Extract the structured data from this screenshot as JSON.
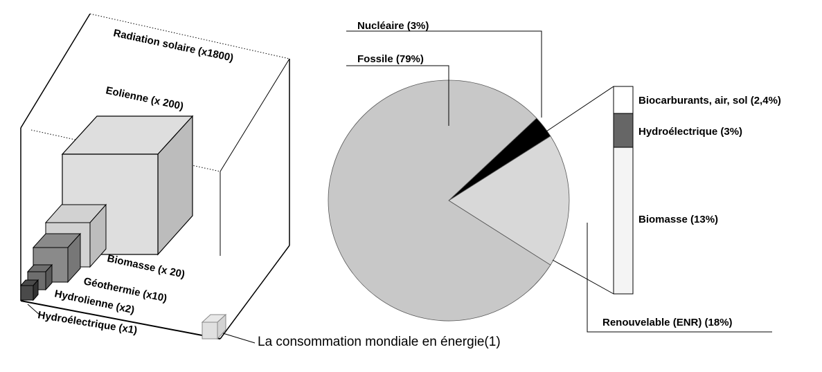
{
  "cube_chart": {
    "outer_label": "Radiation solaire (x1800)",
    "consumption_label": "La consommation mondiale en énergie(1)",
    "cubes": [
      {
        "label": "Eolienne (x 200)",
        "multiplier": 200,
        "fill": "#dedede"
      },
      {
        "label": "Biomasse (x 20)",
        "multiplier": 20,
        "fill": "#d2d2d2"
      },
      {
        "label": "Géothermie (x10)",
        "multiplier": 10,
        "fill": "#8a8a8a"
      },
      {
        "label": "Hydrolienne (x2)",
        "multiplier": 2,
        "fill": "#6e6e6e"
      },
      {
        "label": "Hydroélectrique (x1)",
        "multiplier": 1,
        "fill": "#4a4a4a"
      }
    ]
  },
  "chart_data": [
    {
      "type": "pie",
      "slices": [
        {
          "label": "Fossile (79%)",
          "value": 79,
          "color": "#c8c8c8"
        },
        {
          "label": "Nucléaire (3%)",
          "value": 3,
          "color": "#000000"
        },
        {
          "label": "Renouvelable (ENR) (18%)",
          "value": 18,
          "color": "#d8d8d8"
        }
      ]
    },
    {
      "type": "bar",
      "stacked": true,
      "segments": [
        {
          "label": "Biocarburants, air, sol (2,4%)",
          "value": 2.4,
          "color": "#ffffff"
        },
        {
          "label": "Hydroélectrique (3%)",
          "value": 3,
          "color": "#666666"
        },
        {
          "label": "Biomasse (13%)",
          "value": 13,
          "color": "#f4f4f4"
        }
      ]
    }
  ]
}
